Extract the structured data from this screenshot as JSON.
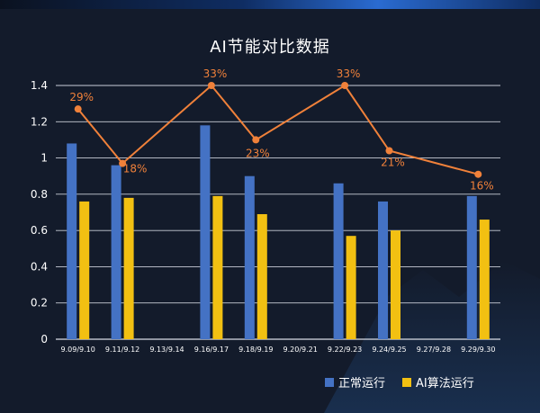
{
  "chart_data": {
    "type": "bar",
    "title": "AI节能对比数据",
    "categories": [
      "9.09/9.10",
      "9.11/9.12",
      "9.13/9.14",
      "9.16/9.17",
      "9.18/9.19",
      "9.20/9.21",
      "9.22/9.23",
      "9.24/9.25",
      "9.27/9.28",
      "9.29/9.30"
    ],
    "series": [
      {
        "name": "正常运行",
        "values": [
          1.08,
          0.96,
          null,
          1.18,
          0.9,
          null,
          0.86,
          0.76,
          null,
          0.79
        ],
        "color": "#4472c4"
      },
      {
        "name": "AI算法运行",
        "values": [
          0.76,
          0.78,
          null,
          0.79,
          0.69,
          null,
          0.57,
          0.6,
          null,
          0.66
        ],
        "color": "#f2c012"
      }
    ],
    "savings": {
      "type": "line",
      "color": "#f0813a",
      "points": [
        {
          "category": "9.09/9.10",
          "y": 1.27,
          "label": "29%"
        },
        {
          "category": "9.11/9.12",
          "y": 0.97,
          "label": "18%"
        },
        {
          "category": "9.16/9.17",
          "y": 1.4,
          "label": "33%"
        },
        {
          "category": "9.18/9.19",
          "y": 1.1,
          "label": "23%"
        },
        {
          "category": "9.22/9.23",
          "y": 1.4,
          "label": "33%"
        },
        {
          "category": "9.24/9.25",
          "y": 1.04,
          "label": "21%"
        },
        {
          "category": "9.29/9.30",
          "y": 0.91,
          "label": "16%"
        }
      ]
    },
    "yticks": [
      "0",
      "0.2",
      "0.4",
      "0.6",
      "0.8",
      "1",
      "1.2",
      "1.4"
    ],
    "ylim": [
      0,
      1.4
    ],
    "grid": true,
    "legend_position": "bottom-right"
  }
}
